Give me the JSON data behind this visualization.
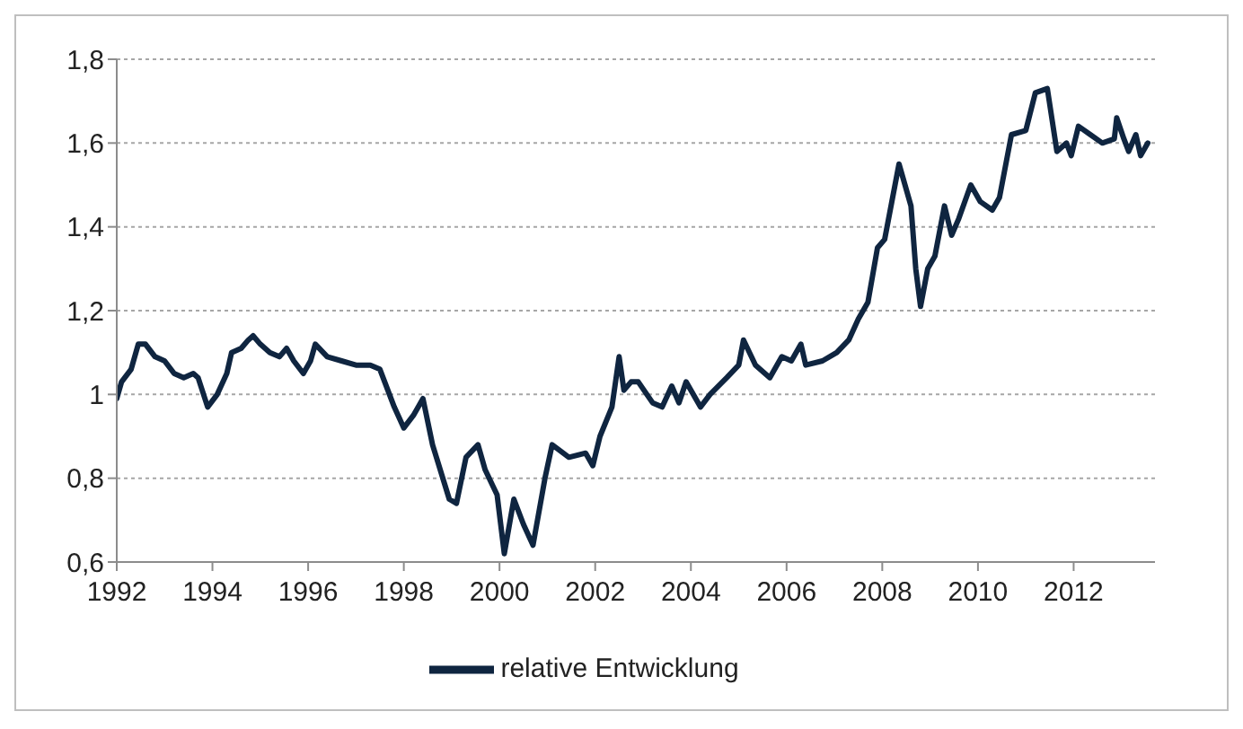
{
  "chart_data": {
    "type": "line",
    "x": [
      1992.0,
      1992.1,
      1992.3,
      1992.45,
      1992.6,
      1992.8,
      1993.0,
      1993.2,
      1993.4,
      1993.6,
      1993.7,
      1993.9,
      1994.1,
      1994.3,
      1994.4,
      1994.6,
      1994.75,
      1994.85,
      1995.0,
      1995.2,
      1995.4,
      1995.55,
      1995.7,
      1995.9,
      1996.05,
      1996.15,
      1996.4,
      1996.7,
      1997.0,
      1997.3,
      1997.5,
      1997.8,
      1998.0,
      1998.2,
      1998.4,
      1998.6,
      1998.95,
      1999.1,
      1999.3,
      1999.55,
      1999.7,
      1999.95,
      2000.1,
      2000.3,
      2000.5,
      2000.7,
      2000.95,
      2001.1,
      2001.45,
      2001.8,
      2001.95,
      2002.1,
      2002.35,
      2002.5,
      2002.6,
      2002.75,
      2002.9,
      2003.2,
      2003.4,
      2003.6,
      2003.75,
      2003.9,
      2004.2,
      2004.4,
      2004.75,
      2005.0,
      2005.1,
      2005.35,
      2005.65,
      2005.9,
      2006.1,
      2006.3,
      2006.4,
      2006.75,
      2007.05,
      2007.3,
      2007.5,
      2007.7,
      2007.9,
      2008.05,
      2008.2,
      2008.35,
      2008.6,
      2008.7,
      2008.8,
      2008.95,
      2009.1,
      2009.3,
      2009.45,
      2009.6,
      2009.85,
      2010.05,
      2010.3,
      2010.45,
      2010.7,
      2011.0,
      2011.2,
      2011.45,
      2011.65,
      2011.85,
      2011.95,
      2012.1,
      2012.35,
      2012.6,
      2012.85,
      2012.9,
      2013.05,
      2013.15,
      2013.3,
      2013.4,
      2013.55
    ],
    "series": [
      {
        "name": "relative Entwicklung",
        "color": "#0f2540",
        "values": [
          0.99,
          1.03,
          1.06,
          1.12,
          1.12,
          1.09,
          1.08,
          1.05,
          1.04,
          1.05,
          1.04,
          0.97,
          1.0,
          1.05,
          1.1,
          1.11,
          1.13,
          1.14,
          1.12,
          1.1,
          1.09,
          1.11,
          1.08,
          1.05,
          1.08,
          1.12,
          1.09,
          1.08,
          1.07,
          1.07,
          1.06,
          0.97,
          0.92,
          0.95,
          0.99,
          0.88,
          0.75,
          0.74,
          0.85,
          0.88,
          0.82,
          0.76,
          0.62,
          0.75,
          0.69,
          0.64,
          0.8,
          0.88,
          0.85,
          0.86,
          0.83,
          0.9,
          0.97,
          1.09,
          1.01,
          1.03,
          1.03,
          0.98,
          0.97,
          1.02,
          0.98,
          1.03,
          0.97,
          1.0,
          1.04,
          1.07,
          1.13,
          1.07,
          1.04,
          1.09,
          1.08,
          1.12,
          1.07,
          1.08,
          1.1,
          1.13,
          1.18,
          1.22,
          1.35,
          1.37,
          1.46,
          1.55,
          1.45,
          1.3,
          1.21,
          1.3,
          1.33,
          1.45,
          1.38,
          1.42,
          1.5,
          1.46,
          1.44,
          1.47,
          1.62,
          1.63,
          1.72,
          1.73,
          1.58,
          1.6,
          1.57,
          1.64,
          1.62,
          1.6,
          1.61,
          1.66,
          1.61,
          1.58,
          1.62,
          1.57,
          1.6
        ]
      }
    ],
    "xlim": [
      1992,
      2013.7
    ],
    "xticks": [
      1992,
      1994,
      1996,
      1998,
      2000,
      2002,
      2004,
      2006,
      2008,
      2010,
      2012
    ],
    "ylim": [
      0.6,
      1.8
    ],
    "yticks": [
      {
        "value": 0.6,
        "label": "0,6"
      },
      {
        "value": 0.8,
        "label": "0,8"
      },
      1,
      {
        "value": 1.2,
        "label": "1,2"
      },
      {
        "value": 1.4,
        "label": "1,4"
      },
      {
        "value": 1.6,
        "label": "1,6"
      },
      {
        "value": 1.8,
        "label": "1,8"
      }
    ],
    "grid": "y",
    "legend": "bottom",
    "marker": "none",
    "line_style": "solid"
  }
}
